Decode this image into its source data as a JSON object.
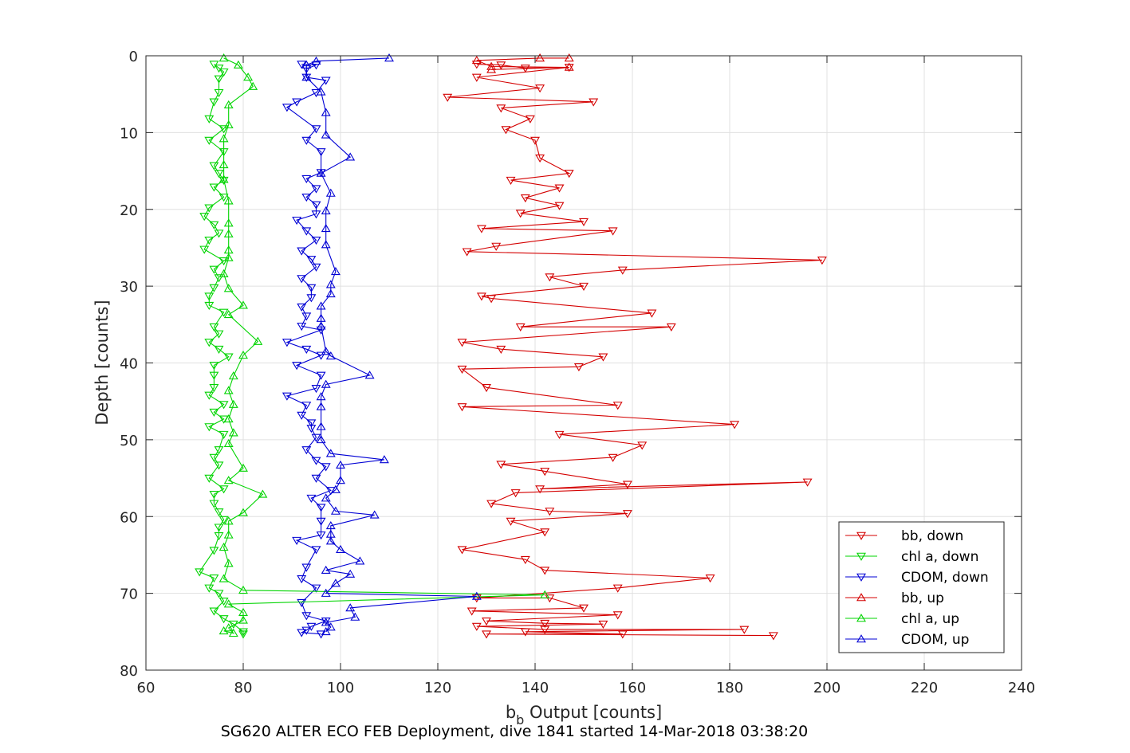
{
  "chart_data": {
    "type": "line",
    "xlabel_main": "b",
    "xlabel_sub": "b",
    "xlabel_rest": " Output [counts]",
    "ylabel": "Depth [counts]",
    "caption": "SG620 ALTER ECO FEB Deployment, dive 1841 started 14-Mar-2018 03:38:20",
    "xlim": [
      60,
      240
    ],
    "ylim": [
      0,
      80
    ],
    "y_reversed": true,
    "grid": true,
    "x_ticks": [
      60,
      80,
      100,
      120,
      140,
      160,
      180,
      200,
      220,
      240
    ],
    "y_ticks": [
      0,
      10,
      20,
      30,
      40,
      50,
      60,
      70,
      80
    ],
    "legend_position": "bottom-right",
    "series": [
      {
        "name": "bb, down",
        "color": "#d40000",
        "marker": "triangle-down",
        "points": [
          [
            128,
            1.1
          ],
          [
            133,
            1.2
          ],
          [
            138,
            1.6
          ],
          [
            147,
            1.5
          ],
          [
            128,
            2.8
          ],
          [
            141,
            4.2
          ],
          [
            122,
            5.4
          ],
          [
            152,
            6
          ],
          [
            133,
            6.8
          ],
          [
            139,
            8.2
          ],
          [
            134,
            9.6
          ],
          [
            140,
            11
          ],
          [
            141,
            13.3
          ],
          [
            147,
            15.3
          ],
          [
            135,
            16.2
          ],
          [
            145,
            17.2
          ],
          [
            138,
            18.5
          ],
          [
            145,
            19.5
          ],
          [
            137,
            20.5
          ],
          [
            150,
            21.6
          ],
          [
            129,
            22.5
          ],
          [
            156,
            22.8
          ],
          [
            132,
            24.8
          ],
          [
            126,
            25.5
          ],
          [
            199,
            26.6
          ],
          [
            158,
            27.9
          ],
          [
            143,
            28.8
          ],
          [
            150,
            30
          ],
          [
            129,
            31.3
          ],
          [
            131,
            31.6
          ],
          [
            164,
            33.5
          ],
          [
            137,
            35.3
          ],
          [
            168,
            35.3
          ],
          [
            125,
            37.3
          ],
          [
            133,
            38.2
          ],
          [
            154,
            39.2
          ],
          [
            149,
            40.5
          ],
          [
            125,
            40.8
          ],
          [
            130,
            43.2
          ],
          [
            157,
            45.5
          ],
          [
            125,
            45.7
          ],
          [
            181,
            48
          ],
          [
            145,
            49.3
          ],
          [
            162,
            50.7
          ],
          [
            156,
            52.3
          ],
          [
            133,
            53.2
          ],
          [
            142,
            54.1
          ],
          [
            159,
            55.8
          ],
          [
            141,
            56.4
          ],
          [
            196,
            55.5
          ],
          [
            136,
            56.9
          ],
          [
            131,
            58.3
          ],
          [
            143,
            59.3
          ],
          [
            159,
            59.6
          ],
          [
            135,
            60.6
          ],
          [
            142,
            62
          ],
          [
            125,
            64.3
          ],
          [
            138,
            65.6
          ],
          [
            142,
            67
          ],
          [
            176,
            68
          ],
          [
            157,
            69.3
          ],
          [
            128,
            70.6
          ],
          [
            143,
            70.6
          ],
          [
            150,
            71.9
          ],
          [
            127,
            72.3
          ],
          [
            157,
            72.8
          ],
          [
            130,
            73.6
          ],
          [
            142,
            73.9
          ],
          [
            154,
            74
          ],
          [
            128,
            74.3
          ],
          [
            142,
            74.7
          ],
          [
            183,
            74.7
          ],
          [
            138,
            75
          ],
          [
            158,
            75.3
          ],
          [
            130,
            75.3
          ],
          [
            189,
            75.5
          ]
        ]
      },
      {
        "name": "chl a, down",
        "color": "#00d400",
        "marker": "triangle-down",
        "points": [
          [
            74,
            1.1
          ],
          [
            75,
            1.6
          ],
          [
            76,
            2.1
          ],
          [
            75,
            3
          ],
          [
            75,
            4.8
          ],
          [
            74,
            6
          ],
          [
            73,
            8.2
          ],
          [
            76,
            9.5
          ],
          [
            73,
            11
          ],
          [
            76,
            12.5
          ],
          [
            74,
            14.3
          ],
          [
            75,
            15.3
          ],
          [
            76,
            16.2
          ],
          [
            74,
            17.1
          ],
          [
            76,
            18.4
          ],
          [
            73,
            19.8
          ],
          [
            72,
            20.9
          ],
          [
            74,
            22
          ],
          [
            75,
            23.1
          ],
          [
            73,
            24
          ],
          [
            72,
            25.2
          ],
          [
            76,
            26.7
          ],
          [
            74,
            27.8
          ],
          [
            75,
            28.9
          ],
          [
            74,
            30.2
          ],
          [
            73,
            31.3
          ],
          [
            73,
            32.5
          ],
          [
            76,
            33.4
          ],
          [
            74,
            35.3
          ],
          [
            75,
            36.2
          ],
          [
            73,
            37.3
          ],
          [
            75,
            38.2
          ],
          [
            77,
            39.2
          ],
          [
            74,
            40.3
          ],
          [
            74,
            41.6
          ],
          [
            74,
            43.2
          ],
          [
            73,
            44.2
          ],
          [
            76,
            45.4
          ],
          [
            74,
            46.4
          ],
          [
            76,
            47.3
          ],
          [
            73,
            48.3
          ],
          [
            76,
            49.3
          ],
          [
            75,
            51.3
          ],
          [
            74,
            52.3
          ],
          [
            75,
            53.3
          ],
          [
            73,
            55
          ],
          [
            76,
            56.4
          ],
          [
            74,
            57.1
          ],
          [
            74,
            58.3
          ],
          [
            75,
            59.4
          ],
          [
            76,
            60.4
          ],
          [
            75,
            61.4
          ],
          [
            75,
            62.5
          ],
          [
            74,
            64.4
          ],
          [
            71,
            67.2
          ],
          [
            74,
            68
          ],
          [
            73,
            69.3
          ],
          [
            75,
            70
          ],
          [
            76,
            71
          ],
          [
            74,
            72.3
          ],
          [
            76,
            73.3
          ],
          [
            78,
            74
          ],
          [
            80,
            75
          ],
          [
            80,
            75.3
          ]
        ]
      },
      {
        "name": "CDOM, down",
        "color": "#0000d4",
        "marker": "triangle-down",
        "points": [
          [
            92,
            1.1
          ],
          [
            95,
            1.2
          ],
          [
            93,
            1.7
          ],
          [
            93,
            2.8
          ],
          [
            97,
            3.2
          ],
          [
            95,
            4.8
          ],
          [
            91,
            6
          ],
          [
            89,
            6.7
          ],
          [
            95,
            9.5
          ],
          [
            93,
            11
          ],
          [
            96,
            12.5
          ],
          [
            96,
            15.2
          ],
          [
            93,
            16
          ],
          [
            95,
            17.3
          ],
          [
            93,
            18.4
          ],
          [
            95,
            19.4
          ],
          [
            95,
            20.6
          ],
          [
            91,
            21.4
          ],
          [
            93,
            22.8
          ],
          [
            95,
            24
          ],
          [
            92,
            25.4
          ],
          [
            94,
            26.5
          ],
          [
            95,
            27.5
          ],
          [
            92,
            29
          ],
          [
            94,
            30.2
          ],
          [
            94,
            31.5
          ],
          [
            92,
            32.7
          ],
          [
            93,
            33.9
          ],
          [
            92,
            35.2
          ],
          [
            96,
            35.7
          ],
          [
            89,
            37.3
          ],
          [
            93,
            38.2
          ],
          [
            96,
            39
          ],
          [
            91,
            40.3
          ],
          [
            96,
            41.6
          ],
          [
            95,
            43.3
          ],
          [
            89,
            44.3
          ],
          [
            93,
            45.5
          ],
          [
            92,
            46.8
          ],
          [
            94,
            47.8
          ],
          [
            94,
            48.5
          ],
          [
            95,
            49.7
          ],
          [
            93,
            51.3
          ],
          [
            95,
            52.7
          ],
          [
            97,
            53.5
          ],
          [
            95,
            55
          ],
          [
            98,
            56.6
          ],
          [
            94,
            57.6
          ],
          [
            96,
            58.8
          ],
          [
            96,
            60.6
          ],
          [
            96,
            62.4
          ],
          [
            91,
            63.1
          ],
          [
            95,
            64.3
          ],
          [
            93,
            66.6
          ],
          [
            92,
            68.1
          ],
          [
            95,
            69.3
          ],
          [
            92,
            71.2
          ],
          [
            93,
            72.9
          ],
          [
            97,
            73.6
          ],
          [
            94,
            74.3
          ],
          [
            93,
            74.8
          ],
          [
            92,
            75.1
          ],
          [
            96,
            75.3
          ]
        ]
      },
      {
        "name": "bb, up",
        "color": "#d40000",
        "marker": "triangle-up",
        "points": [
          [
            147,
            0.3
          ],
          [
            141,
            0.3
          ],
          [
            128,
            0.6
          ],
          [
            131,
            1.4
          ],
          [
            147,
            1.5
          ],
          [
            131,
            1.8
          ]
        ]
      },
      {
        "name": "chl a, up",
        "color": "#00d400",
        "marker": "triangle-up",
        "points": [
          [
            76,
            0.3
          ],
          [
            79,
            1.2
          ],
          [
            81,
            2.8
          ],
          [
            82,
            4
          ],
          [
            77,
            6.4
          ],
          [
            77,
            9
          ],
          [
            76,
            10.8
          ],
          [
            76,
            14.2
          ],
          [
            76,
            16.1
          ],
          [
            77,
            18.9
          ],
          [
            77,
            21.8
          ],
          [
            77,
            23.2
          ],
          [
            77,
            25.3
          ],
          [
            77,
            26.3
          ],
          [
            76,
            28.4
          ],
          [
            77,
            30.3
          ],
          [
            80,
            32.5
          ],
          [
            77,
            33.7
          ],
          [
            83,
            37.2
          ],
          [
            80,
            39
          ],
          [
            78,
            41.7
          ],
          [
            77,
            43.6
          ],
          [
            78,
            45.4
          ],
          [
            77,
            47.3
          ],
          [
            78,
            49.1
          ],
          [
            77,
            50.5
          ],
          [
            80,
            53.7
          ],
          [
            77,
            55.3
          ],
          [
            84,
            57.1
          ],
          [
            80,
            59.5
          ],
          [
            77,
            60.6
          ],
          [
            77,
            62.4
          ],
          [
            76,
            64
          ],
          [
            77,
            66.1
          ],
          [
            76,
            68.1
          ],
          [
            80,
            69.6
          ],
          [
            142,
            70.2
          ],
          [
            77,
            71.4
          ],
          [
            80,
            72.5
          ],
          [
            80,
            73.5
          ],
          [
            77,
            74.5
          ],
          [
            78,
            75.2
          ],
          [
            76,
            74.9
          ]
        ]
      },
      {
        "name": "CDOM, up",
        "color": "#0000d4",
        "marker": "triangle-up",
        "points": [
          [
            110,
            0.3
          ],
          [
            95,
            0.7
          ],
          [
            93,
            1.2
          ],
          [
            93,
            2.8
          ],
          [
            96,
            4.7
          ],
          [
            97,
            7.4
          ],
          [
            97,
            10.3
          ],
          [
            102,
            13.2
          ],
          [
            96,
            15.3
          ],
          [
            98,
            17.9
          ],
          [
            97,
            20.2
          ],
          [
            97,
            22.5
          ],
          [
            97,
            24.6
          ],
          [
            99,
            28.1
          ],
          [
            98,
            29.8
          ],
          [
            98,
            31
          ],
          [
            96,
            32.6
          ],
          [
            96,
            34.2
          ],
          [
            96,
            35.2
          ],
          [
            97,
            38.5
          ],
          [
            98,
            39.1
          ],
          [
            106,
            41.6
          ],
          [
            97,
            42.8
          ],
          [
            96,
            44.4
          ],
          [
            96,
            45.7
          ],
          [
            96,
            48.3
          ],
          [
            96,
            50
          ],
          [
            98,
            51.8
          ],
          [
            109,
            52.6
          ],
          [
            100,
            53.3
          ],
          [
            100,
            55.3
          ],
          [
            99,
            56.5
          ],
          [
            97,
            57.6
          ],
          [
            99,
            59.3
          ],
          [
            107,
            59.8
          ],
          [
            98,
            61.2
          ],
          [
            98,
            62.3
          ],
          [
            98,
            63.2
          ],
          [
            100,
            64.3
          ],
          [
            104,
            65.8
          ],
          [
            97,
            67
          ],
          [
            102,
            67.5
          ],
          [
            99,
            68.7
          ],
          [
            97,
            70
          ],
          [
            128,
            70.4
          ],
          [
            102,
            71.9
          ],
          [
            103,
            73.1
          ],
          [
            97,
            73.8
          ],
          [
            98,
            74.4
          ],
          [
            97,
            75
          ]
        ]
      }
    ]
  }
}
